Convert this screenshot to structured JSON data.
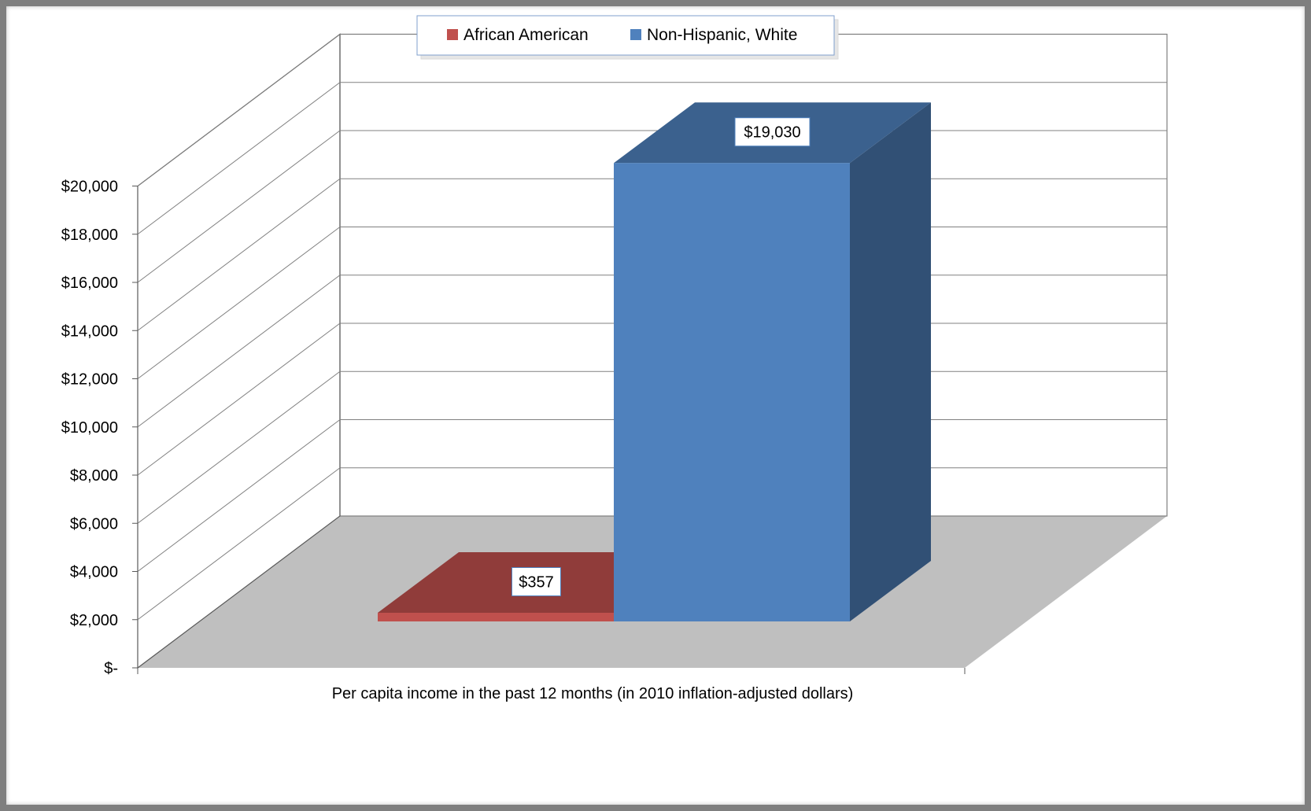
{
  "chart_data": {
    "type": "bar",
    "categories": [
      "Per capita income in the past 12 months (in 2010 inflation-adjusted dollars)"
    ],
    "series": [
      {
        "name": "African American",
        "values": [
          357
        ],
        "data_label": "$357",
        "color": "#c0504d"
      },
      {
        "name": "Non-Hispanic, White",
        "values": [
          19030
        ],
        "data_label": "$19,030",
        "color": "#4f81bd"
      }
    ],
    "y_ticks": [
      {
        "value": 0,
        "label": "$-"
      },
      {
        "value": 2000,
        "label": "$2,000"
      },
      {
        "value": 4000,
        "label": "$4,000"
      },
      {
        "value": 6000,
        "label": "$6,000"
      },
      {
        "value": 8000,
        "label": "$8,000"
      },
      {
        "value": 10000,
        "label": "$10,000"
      },
      {
        "value": 12000,
        "label": "$12,000"
      },
      {
        "value": 14000,
        "label": "$14,000"
      },
      {
        "value": 16000,
        "label": "$16,000"
      },
      {
        "value": 18000,
        "label": "$18,000"
      },
      {
        "value": 20000,
        "label": "$20,000"
      }
    ],
    "ylim": [
      0,
      20000
    ],
    "grid": true,
    "legend_position": "top-center",
    "style": "3d-column"
  }
}
